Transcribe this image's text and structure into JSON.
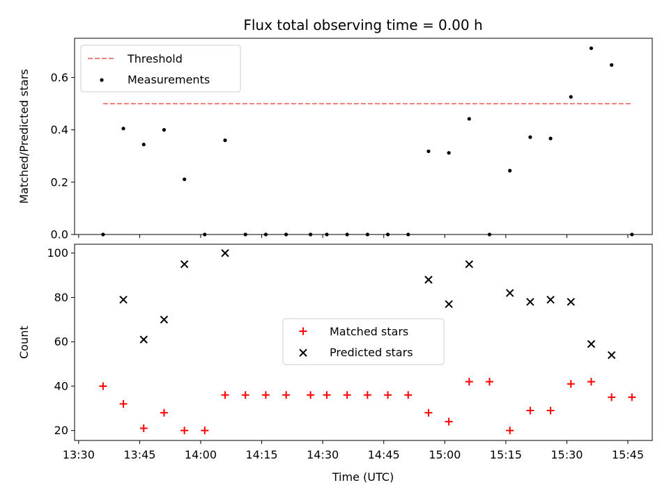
{
  "chart_data": [
    {
      "type": "scatter",
      "title": "Flux total observing time = 0.00 h",
      "xlabel": "",
      "ylabel": "Matched/Predicted stars",
      "ylim": [
        0,
        0.75
      ],
      "yticks": [
        "0.0",
        "0.2",
        "0.4",
        "0.6"
      ],
      "legend": {
        "placement": "top-left",
        "entries": [
          "Threshold",
          "Measurements"
        ]
      },
      "threshold": {
        "name": "Threshold",
        "y": 0.5,
        "x_range": [
          "13:36",
          "15:46"
        ],
        "color": "#f08080",
        "style": "dashed"
      },
      "series": [
        {
          "name": "Measurements",
          "color": "#000000",
          "marker": "dot",
          "points": [
            [
              "13:36",
              0.0
            ],
            [
              "13:41",
              0.405
            ],
            [
              "13:46",
              0.344
            ],
            [
              "13:51",
              0.4
            ],
            [
              "13:56",
              0.211
            ],
            [
              "14:01",
              0.0
            ],
            [
              "14:06",
              0.36
            ],
            [
              "14:11",
              0.0
            ],
            [
              "14:16",
              0.0
            ],
            [
              "14:21",
              0.0
            ],
            [
              "14:27",
              0.0
            ],
            [
              "14:31",
              0.0
            ],
            [
              "14:36",
              0.0
            ],
            [
              "14:41",
              0.0
            ],
            [
              "14:46",
              0.0
            ],
            [
              "14:51",
              0.0
            ],
            [
              "14:56",
              0.318
            ],
            [
              "15:01",
              0.312
            ],
            [
              "15:06",
              0.442
            ],
            [
              "15:11",
              0.0
            ],
            [
              "15:16",
              0.244
            ],
            [
              "15:21",
              0.372
            ],
            [
              "15:26",
              0.367
            ],
            [
              "15:31",
              0.526
            ],
            [
              "15:36",
              0.712
            ],
            [
              "15:41",
              0.648
            ],
            [
              "15:46",
              0.0
            ]
          ]
        }
      ]
    },
    {
      "type": "scatter",
      "title": "",
      "xlabel": "Time (UTC)",
      "ylabel": "Count",
      "xlim": [
        "13:29",
        "15:51"
      ],
      "ylim": [
        15.5,
        104
      ],
      "yticks": [
        "20",
        "40",
        "60",
        "80",
        "100"
      ],
      "xticks": [
        "13:30",
        "13:45",
        "14:00",
        "14:15",
        "14:30",
        "14:45",
        "15:00",
        "15:15",
        "15:30",
        "15:45"
      ],
      "legend": {
        "placement": "center",
        "entries": [
          "Matched stars",
          "Predicted stars"
        ]
      },
      "series": [
        {
          "name": "Matched stars",
          "color": "#ff0000",
          "marker": "plus",
          "points": [
            [
              "13:36",
              40
            ],
            [
              "13:41",
              32
            ],
            [
              "13:46",
              21
            ],
            [
              "13:51",
              28
            ],
            [
              "13:56",
              20
            ],
            [
              "14:01",
              20
            ],
            [
              "14:06",
              36
            ],
            [
              "14:11",
              36
            ],
            [
              "14:16",
              36
            ],
            [
              "14:21",
              36
            ],
            [
              "14:27",
              36
            ],
            [
              "14:31",
              36
            ],
            [
              "14:36",
              36
            ],
            [
              "14:41",
              36
            ],
            [
              "14:46",
              36
            ],
            [
              "14:51",
              36
            ],
            [
              "14:56",
              28
            ],
            [
              "15:01",
              24
            ],
            [
              "15:06",
              42
            ],
            [
              "15:11",
              42
            ],
            [
              "15:16",
              20
            ],
            [
              "15:21",
              29
            ],
            [
              "15:26",
              29
            ],
            [
              "15:31",
              41
            ],
            [
              "15:36",
              42
            ],
            [
              "15:41",
              35
            ],
            [
              "15:46",
              35
            ]
          ]
        },
        {
          "name": "Predicted stars",
          "color": "#000000",
          "marker": "x",
          "points": [
            [
              "13:41",
              79
            ],
            [
              "13:46",
              61
            ],
            [
              "13:51",
              70
            ],
            [
              "13:56",
              95
            ],
            [
              "14:06",
              100
            ],
            [
              "14:56",
              88
            ],
            [
              "15:01",
              77
            ],
            [
              "15:06",
              95
            ],
            [
              "15:16",
              82
            ],
            [
              "15:21",
              78
            ],
            [
              "15:26",
              79
            ],
            [
              "15:31",
              78
            ],
            [
              "15:36",
              59
            ],
            [
              "15:41",
              54
            ]
          ]
        }
      ]
    }
  ]
}
